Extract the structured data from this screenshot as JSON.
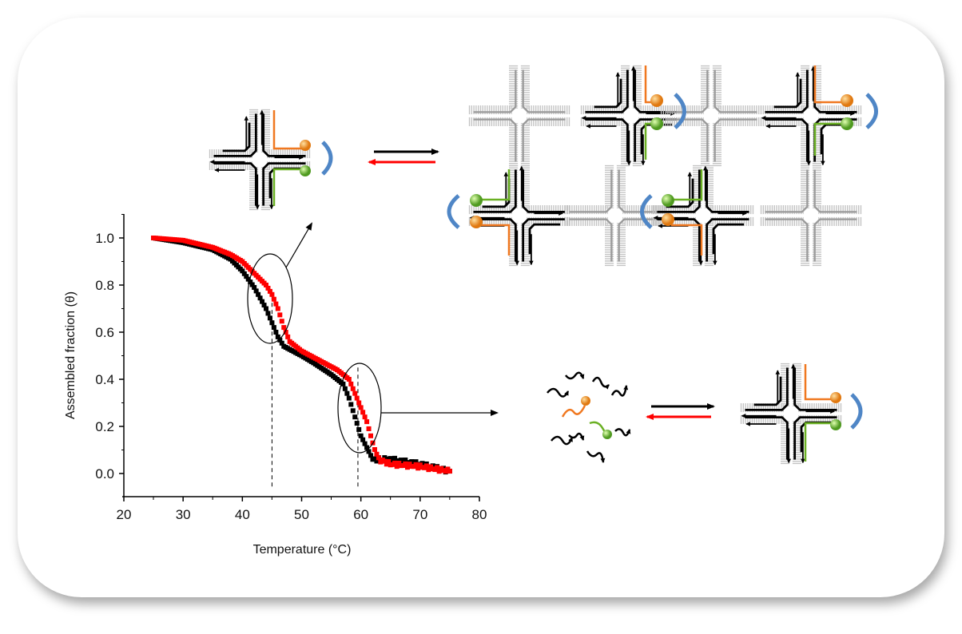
{
  "chart_data": {
    "type": "scatter",
    "xlabel": "Temperature (°C)",
    "ylabel": "Assembled fraction (θ)",
    "xlim": [
      20,
      80
    ],
    "ylim": [
      -0.1,
      1.1
    ],
    "xticks": [
      "20",
      "30",
      "40",
      "50",
      "60",
      "70",
      "80"
    ],
    "yticks": [
      "0.0",
      "0.2",
      "0.4",
      "0.6",
      "0.8",
      "1.0"
    ],
    "grid": false,
    "series": [
      {
        "color": "#000000",
        "points": [
          [
            25,
            1.0
          ],
          [
            30,
            0.98
          ],
          [
            35,
            0.95
          ],
          [
            38,
            0.91
          ],
          [
            40,
            0.86
          ],
          [
            42,
            0.79
          ],
          [
            44,
            0.7
          ],
          [
            45,
            0.64
          ],
          [
            46,
            0.58
          ],
          [
            47,
            0.54
          ],
          [
            50,
            0.5
          ],
          [
            52,
            0.47
          ],
          [
            55,
            0.42
          ],
          [
            57,
            0.38
          ],
          [
            58,
            0.32
          ],
          [
            59,
            0.24
          ],
          [
            60,
            0.16
          ],
          [
            61,
            0.11
          ],
          [
            62,
            0.06
          ],
          [
            65,
            0.06
          ],
          [
            70,
            0.04
          ],
          [
            75,
            0.01
          ]
        ]
      },
      {
        "color": "#ff0000",
        "points": [
          [
            25,
            1.0
          ],
          [
            30,
            0.99
          ],
          [
            35,
            0.96
          ],
          [
            38,
            0.93
          ],
          [
            40,
            0.9
          ],
          [
            42,
            0.85
          ],
          [
            44,
            0.8
          ],
          [
            45,
            0.76
          ],
          [
            46,
            0.7
          ],
          [
            47,
            0.62
          ],
          [
            48,
            0.56
          ],
          [
            50,
            0.52
          ],
          [
            53,
            0.48
          ],
          [
            56,
            0.44
          ],
          [
            58,
            0.4
          ],
          [
            59,
            0.34
          ],
          [
            60,
            0.28
          ],
          [
            61,
            0.22
          ],
          [
            62,
            0.13
          ],
          [
            63,
            0.06
          ],
          [
            65,
            0.04
          ],
          [
            70,
            0.03
          ],
          [
            75,
            0.01
          ]
        ]
      }
    ],
    "annotations": {
      "dashed_lines_x": [
        45,
        59.5
      ]
    }
  },
  "colors": {
    "orange": "#f07820",
    "green": "#6ab023",
    "blue": "#4f86c6",
    "gray": "#bbbbbb"
  }
}
